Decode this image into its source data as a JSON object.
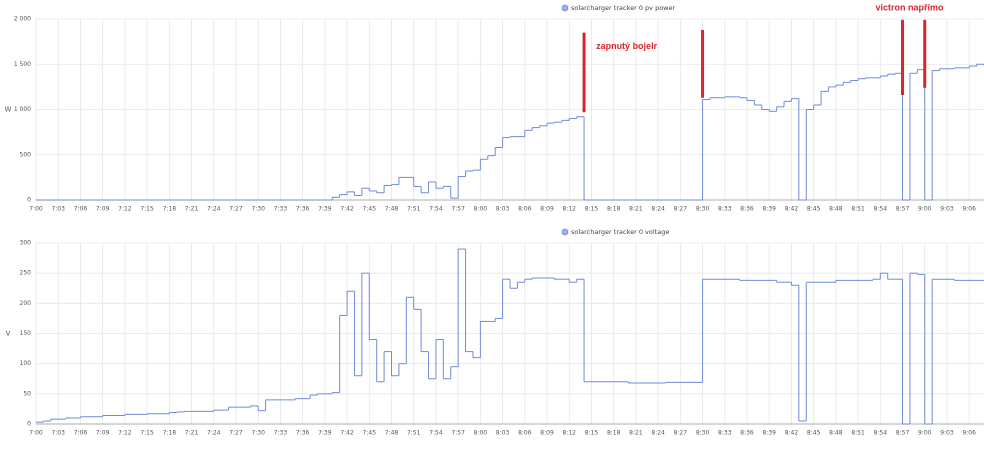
{
  "chart_data": [
    {
      "type": "line",
      "step": true,
      "grid": true,
      "ylabel": "W",
      "x": [
        "7:00",
        "7:39",
        "7:40",
        "7:41",
        "7:42",
        "7:43",
        "7:44",
        "7:45",
        "7:46",
        "7:47",
        "7:48",
        "7:49",
        "7:50",
        "7:51",
        "7:52",
        "7:53",
        "7:54",
        "7:55",
        "7:56",
        "7:57",
        "7:58",
        "7:59",
        "8:00",
        "8:01",
        "8:02",
        "8:03",
        "8:04",
        "8:05",
        "8:06",
        "8:07",
        "8:08",
        "8:09",
        "8:10",
        "8:11",
        "8:12",
        "8:13",
        "8:14",
        "8:30",
        "8:31",
        "8:33",
        "8:35",
        "8:36",
        "8:37",
        "8:38",
        "8:39",
        "8:40",
        "8:41",
        "8:42",
        "8:43",
        "8:44",
        "8:45",
        "8:46",
        "8:47",
        "8:48",
        "8:49",
        "8:50",
        "8:51",
        "8:52",
        "8:54",
        "8:55",
        "8:56",
        "8:57",
        "8:58",
        "8:59",
        "9:00",
        "9:01",
        "9:02",
        "9:04",
        "9:06",
        "9:07",
        "9:08"
      ],
      "series": [
        {
          "name": "solarcharger tracker 0 pv power",
          "color": "#6f8bd8",
          "values": [
            0,
            0,
            30,
            60,
            90,
            50,
            130,
            100,
            80,
            160,
            170,
            250,
            250,
            150,
            80,
            200,
            130,
            150,
            20,
            260,
            320,
            330,
            450,
            490,
            580,
            690,
            700,
            700,
            770,
            800,
            820,
            850,
            860,
            880,
            900,
            920,
            0,
            1110,
            1130,
            1140,
            1130,
            1100,
            1050,
            1000,
            980,
            1030,
            1090,
            1120,
            0,
            1000,
            1050,
            1200,
            1250,
            1270,
            1300,
            1320,
            1340,
            1350,
            1370,
            1390,
            1400,
            0,
            1400,
            1440,
            0,
            1430,
            1450,
            1460,
            1480,
            1500,
            1490
          ]
        }
      ],
      "xlim": [
        "7:00",
        "9:08"
      ],
      "xticks": [
        "7:00",
        "7:03",
        "7:06",
        "7:09",
        "7:12",
        "7:15",
        "7:18",
        "7:21",
        "7:24",
        "7:27",
        "7:30",
        "7:33",
        "7:36",
        "7:39",
        "7:42",
        "7:45",
        "7:48",
        "7:51",
        "7:54",
        "7:57",
        "8:00",
        "8:03",
        "8:06",
        "8:09",
        "8:12",
        "8:15",
        "8:18",
        "8:21",
        "8:24",
        "8:27",
        "8:30",
        "8:33",
        "8:36",
        "8:39",
        "8:42",
        "8:45",
        "8:48",
        "8:51",
        "8:54",
        "8:57",
        "9:00",
        "9:03",
        "9:06"
      ],
      "ylim": [
        0,
        2000
      ],
      "yticks": [
        0,
        500,
        {
          "value": 1000,
          "label": "1 000"
        },
        {
          "value": 1500,
          "label": "1 500"
        },
        {
          "value": 2000,
          "label": "2 000"
        }
      ],
      "annotations": [
        {
          "text": "zapnutý bojelr",
          "color": "#d7262e",
          "lines": [
            {
              "x": "8:14",
              "from": 970,
              "to": 1850
            },
            {
              "x": "8:30",
              "from": 1130,
              "to": 1880
            }
          ]
        },
        {
          "text": "victron napřímo",
          "color": "#d7262e",
          "lines": [
            {
              "x": "8:57",
              "from": 1160,
              "to": 1990
            },
            {
              "x": "9:00",
              "from": 1240,
              "to": 1990
            }
          ]
        }
      ]
    },
    {
      "type": "line",
      "step": true,
      "grid": true,
      "ylabel": "V",
      "x": [
        "7:00",
        "7:01",
        "7:02",
        "7:04",
        "7:06",
        "7:09",
        "7:12",
        "7:15",
        "7:18",
        "7:19",
        "7:20",
        "7:24",
        "7:26",
        "7:29",
        "7:30",
        "7:31",
        "7:35",
        "7:37",
        "7:38",
        "7:40",
        "7:41",
        "7:42",
        "7:43",
        "7:44",
        "7:45",
        "7:46",
        "7:47",
        "7:48",
        "7:49",
        "7:50",
        "7:51",
        "7:52",
        "7:53",
        "7:54",
        "7:55",
        "7:56",
        "7:57",
        "7:58",
        "7:59",
        "8:00",
        "8:02",
        "8:03",
        "8:04",
        "8:05",
        "8:06",
        "8:07",
        "8:10",
        "8:12",
        "8:13",
        "8:14",
        "8:20",
        "8:25",
        "8:30",
        "8:35",
        "8:40",
        "8:42",
        "8:43",
        "8:44",
        "8:48",
        "8:53",
        "8:54",
        "8:55",
        "8:57",
        "8:58",
        "8:59",
        "9:00",
        "9:01",
        "9:04",
        "9:08"
      ],
      "series": [
        {
          "name": "solarcharger tracker 0 voltage",
          "color": "#6f8bd8",
          "values": [
            3,
            5,
            8,
            10,
            12,
            14,
            16,
            17,
            19,
            20,
            21,
            23,
            28,
            30,
            22,
            40,
            42,
            48,
            50,
            52,
            180,
            220,
            80,
            250,
            140,
            70,
            120,
            80,
            100,
            210,
            190,
            120,
            75,
            140,
            75,
            95,
            290,
            120,
            110,
            170,
            175,
            240,
            225,
            235,
            240,
            242,
            240,
            235,
            240,
            70,
            68,
            69,
            240,
            238,
            235,
            230,
            5,
            235,
            238,
            240,
            250,
            240,
            0,
            250,
            248,
            0,
            240,
            238,
            238
          ]
        }
      ],
      "xlim": [
        "7:00",
        "9:08"
      ],
      "xticks": [
        "7:00",
        "7:03",
        "7:06",
        "7:09",
        "7:12",
        "7:15",
        "7:18",
        "7:21",
        "7:24",
        "7:27",
        "7:30",
        "7:33",
        "7:36",
        "7:39",
        "7:42",
        "7:45",
        "7:48",
        "7:51",
        "7:54",
        "7:57",
        "8:00",
        "8:03",
        "8:06",
        "8:09",
        "8:12",
        "8:15",
        "8:18",
        "8:21",
        "8:24",
        "8:27",
        "8:30",
        "8:33",
        "8:36",
        "8:39",
        "8:42",
        "8:45",
        "8:48",
        "8:51",
        "8:54",
        "8:57",
        "9:00",
        "9:03",
        "9:06"
      ],
      "ylim": [
        0,
        300
      ],
      "yticks": [
        0,
        50,
        100,
        150,
        200,
        250,
        300
      ]
    }
  ]
}
